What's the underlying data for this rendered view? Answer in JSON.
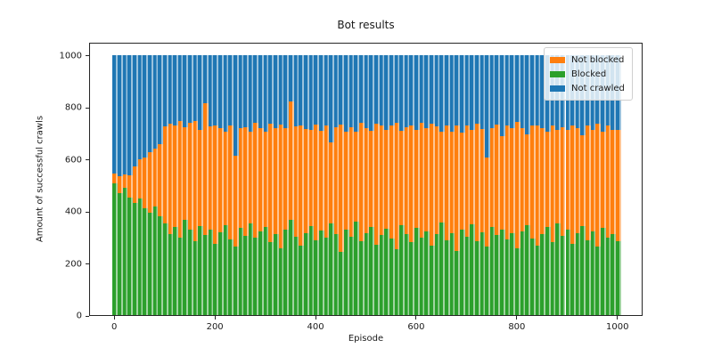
{
  "figure": {
    "title": "Bot results",
    "background_color": "#ffffff"
  },
  "axes": {
    "xlabel": "Episode",
    "ylabel": "Amount of successful crawls",
    "x_ticks": [
      0,
      200,
      400,
      600,
      800,
      1000
    ],
    "y_ticks": [
      0,
      200,
      400,
      600,
      800,
      1000
    ]
  },
  "legend": {
    "position": "upper right",
    "entries": [
      {
        "label": "Not blocked",
        "color": "#ff7f0e"
      },
      {
        "label": "Blocked",
        "color": "#2ca02c"
      },
      {
        "label": "Not crawled",
        "color": "#1f77b4"
      }
    ]
  },
  "chart_data": {
    "type": "bar",
    "stacked": true,
    "title": "Bot results",
    "xlabel": "Episode",
    "ylabel": "Amount of successful crawls",
    "xlim": [
      -50,
      1050
    ],
    "ylim": [
      0,
      1050
    ],
    "grid": false,
    "bar_total": 1000,
    "x_start": 0,
    "x_step": 10,
    "series": [
      {
        "name": "Blocked",
        "color": "#2ca02c",
        "stack_order": 0,
        "values": [
          505,
          470,
          488,
          452,
          432,
          448,
          410,
          395,
          418,
          378,
          352,
          310,
          338,
          296,
          365,
          328,
          285,
          342,
          308,
          330,
          272,
          318,
          345,
          290,
          262,
          335,
          305,
          352,
          298,
          322,
          340,
          282,
          310,
          255,
          330,
          365,
          300,
          268,
          315,
          342,
          288,
          325,
          298,
          352,
          310,
          242,
          330,
          302,
          358,
          285,
          315,
          340,
          270,
          308,
          332,
          295,
          252,
          345,
          312,
          280,
          335,
          298,
          322,
          268,
          310,
          355,
          288,
          315,
          245,
          328,
          302,
          348,
          285,
          318,
          262,
          340,
          308,
          330,
          292,
          315,
          258,
          322,
          345,
          295,
          268,
          312,
          338,
          282,
          352,
          305,
          328,
          272,
          315,
          342,
          288,
          320,
          262,
          335,
          298,
          312,
          285
        ]
      },
      {
        "name": "Not blocked",
        "color": "#ff7f0e",
        "stack_order": 1,
        "values": [
          38,
          65,
          52,
          84,
          140,
          152,
          195,
          230,
          222,
          280,
          372,
          425,
          390,
          448,
          355,
          410,
          462,
          368,
          505,
          395,
          455,
          402,
          360,
          438,
          352,
          385,
          418,
          352,
          442,
          398,
          365,
          452,
          408,
          478,
          390,
          455,
          425,
          460,
          400,
          370,
          445,
          382,
          430,
          310,
          412,
          490,
          375,
          420,
          348,
          455,
          405,
          368,
          465,
          422,
          380,
          435,
          488,
          362,
          410,
          450,
          378,
          440,
          395,
          468,
          415,
          350,
          442,
          388,
          482,
          372,
          428,
          362,
          450,
          398,
          345,
          380,
          425,
          358,
          438,
          402,
          485,
          395,
          348,
          432,
          460,
          408,
          365,
          448,
          360,
          418,
          385,
          455,
          402,
          348,
          440,
          392,
          475,
          368,
          430,
          398,
          425
        ]
      },
      {
        "name": "Not crawled",
        "color": "#1f77b4",
        "stack_order": 2,
        "derived": "bar_total minus Blocked minus Not blocked"
      }
    ]
  }
}
